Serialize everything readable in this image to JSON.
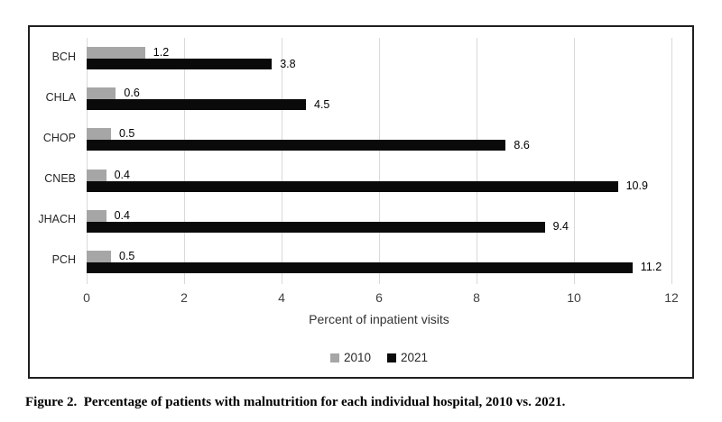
{
  "figure_caption": "Figure 2.  Percentage of patients with malnutrition for each individual hospital, 2010 vs. 2021.",
  "chart_data": {
    "type": "bar",
    "orientation": "horizontal",
    "title": "",
    "categories": [
      "BCH",
      "CHLA",
      "CHOP",
      "CNEB",
      "JHACH",
      "PCH"
    ],
    "series": [
      {
        "name": "2010",
        "color": "#a6a6a6",
        "values": [
          1.2,
          0.6,
          0.5,
          0.4,
          0.4,
          0.5
        ]
      },
      {
        "name": "2021",
        "color": "#0a0a0a",
        "values": [
          3.8,
          4.5,
          8.6,
          10.9,
          9.4,
          11.2
        ]
      }
    ],
    "xlabel": "Percent of inpatient visits",
    "xlim": [
      0,
      12
    ],
    "xticks": [
      0,
      2,
      4,
      6,
      8,
      10,
      12
    ],
    "grid": "vertical",
    "gridline_color": "#d9d9d9",
    "frame_border_color": "#1f1f1f",
    "value_labels": true,
    "legend_position": "bottom"
  }
}
